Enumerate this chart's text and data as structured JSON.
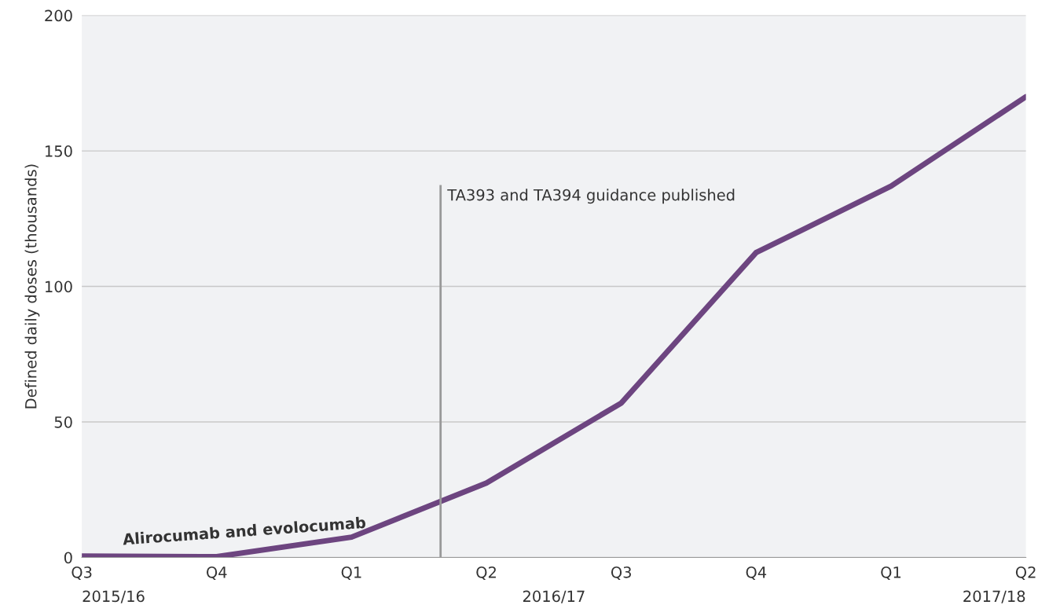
{
  "chart_data": {
    "type": "line",
    "ylabel": "Defined daily doses (thousands)",
    "categories": [
      "Q3",
      "Q4",
      "Q1",
      "Q2",
      "Q3",
      "Q4",
      "Q1",
      "Q2"
    ],
    "series": [
      {
        "name": "Alirocumab and evolocumab",
        "color": "#6d4580",
        "values": [
          0.5,
          0.3,
          7.5,
          27.5,
          57,
          112.5,
          137,
          170
        ]
      }
    ],
    "ylim": [
      0,
      200
    ],
    "yticks": [
      0,
      50,
      100,
      150,
      200
    ],
    "grid": "y",
    "marker": "none",
    "line_style": "solid",
    "legend": false,
    "annotations": [
      "TA393 and TA394 guidance published",
      "2015/16",
      "2016/17",
      "2017/18"
    ]
  }
}
